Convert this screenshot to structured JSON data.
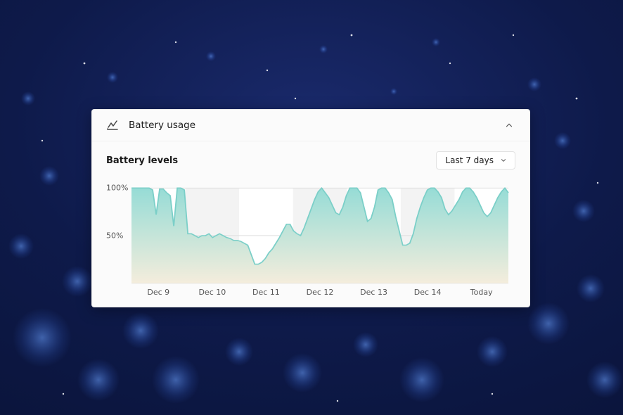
{
  "header": {
    "title": "Battery usage"
  },
  "section": {
    "title": "Battery levels"
  },
  "dropdown": {
    "selected": "Last 7 days"
  },
  "chart": {
    "type": "area",
    "ylim": [
      0,
      100
    ],
    "yticks": [
      {
        "value": 100,
        "label": "100%"
      },
      {
        "value": 50,
        "label": "50%"
      }
    ],
    "xticks": [
      "Dec 9",
      "Dec 10",
      "Dec 11",
      "Dec 12",
      "Dec 13",
      "Dec 14",
      "Today"
    ],
    "series": [
      100,
      100,
      100,
      100,
      100,
      100,
      98,
      72,
      99,
      99,
      95,
      92,
      60,
      100,
      100,
      98,
      52,
      52,
      50,
      48,
      50,
      50,
      52,
      48,
      50,
      52,
      50,
      48,
      47,
      45,
      45,
      44,
      42,
      40,
      30,
      20,
      20,
      22,
      26,
      32,
      36,
      42,
      48,
      55,
      62,
      62,
      55,
      52,
      50,
      58,
      68,
      78,
      88,
      96,
      100,
      95,
      90,
      82,
      74,
      72,
      80,
      92,
      100,
      100,
      100,
      95,
      80,
      65,
      68,
      80,
      98,
      100,
      100,
      95,
      88,
      70,
      55,
      40,
      40,
      42,
      52,
      68,
      80,
      90,
      98,
      100,
      100,
      96,
      90,
      78,
      72,
      76,
      82,
      88,
      96,
      100,
      100,
      96,
      90,
      82,
      74,
      70,
      74,
      82,
      90,
      96,
      100,
      95
    ],
    "colors": {
      "gradient_top": "#96dcd6",
      "gradient_bottom": "#f4eddc",
      "line": "#7bcfc8",
      "gridline": "#d9d9d9",
      "axis_label": "#555555",
      "band_bg": "#f3f3f3",
      "plot_bg": "#ffffff"
    },
    "line_width": 1.8,
    "title_fontsize": 13,
    "label_fontsize": 11,
    "background_color": "#fbfbfb"
  }
}
